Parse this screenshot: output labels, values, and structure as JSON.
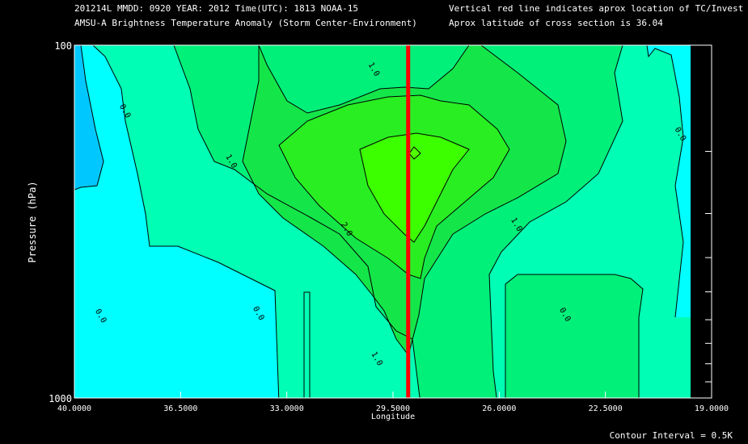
{
  "header": {
    "line1_left": "201214L  MMDD: 0920 YEAR: 2012 Time(UTC): 1813 NOAA-15",
    "line2_left": "AMSU-A Brightness Temperature Anomaly (Storm Center-Environment)",
    "line1_right": "Vertical red line indicates aprox location of TC/Invest",
    "line2_right": "Aprox latitude of cross section is 36.04"
  },
  "footer": {
    "contour_interval": "Contour Interval = 0.5K"
  },
  "chart_data": {
    "type": "contour",
    "ylabel": "Pressure (hPa)",
    "xlabel": "Longitude",
    "xlim": [
      40.0,
      19.0
    ],
    "ylim": [
      1000,
      100
    ],
    "y_scale": "log",
    "x_ticks": [
      "40.0000",
      "36.5000",
      "33.0000",
      "29.5000",
      "26.0000",
      "22.5000",
      "19.0000"
    ],
    "y_ticks": [
      "100",
      "1000"
    ],
    "storm_longitude": 29.0,
    "contour_labels": [
      {
        "text": "0.0",
        "x": 38.4,
        "y": 155
      },
      {
        "text": "0.0",
        "x": 39.2,
        "y": 590
      },
      {
        "text": "0.0",
        "x": 34.0,
        "y": 580
      },
      {
        "text": "0.0",
        "x": 20.1,
        "y": 180
      },
      {
        "text": "0.0",
        "x": 23.9,
        "y": 585
      },
      {
        "text": "1.0",
        "x": 34.9,
        "y": 215
      },
      {
        "text": "1.0",
        "x": 30.2,
        "y": 118
      },
      {
        "text": "1.0",
        "x": 30.1,
        "y": 780
      },
      {
        "text": "1.0",
        "x": 25.5,
        "y": 325
      },
      {
        "text": "2.0",
        "x": 31.1,
        "y": 335
      }
    ],
    "legend": {
      "colors": {
        "below_0": "#00c8ff",
        "0_to_0_5": "#00ffff",
        "0_5_to_1": "#00ffb4",
        "1_to_1_5": "#00f07a",
        "1_5_to_2": "#14e64a",
        "2_to_2_5": "#28ee22",
        "above_2_5": "#3cff00"
      }
    },
    "storm_line_color": "#ff0000",
    "plot_background": "#00ffff"
  }
}
